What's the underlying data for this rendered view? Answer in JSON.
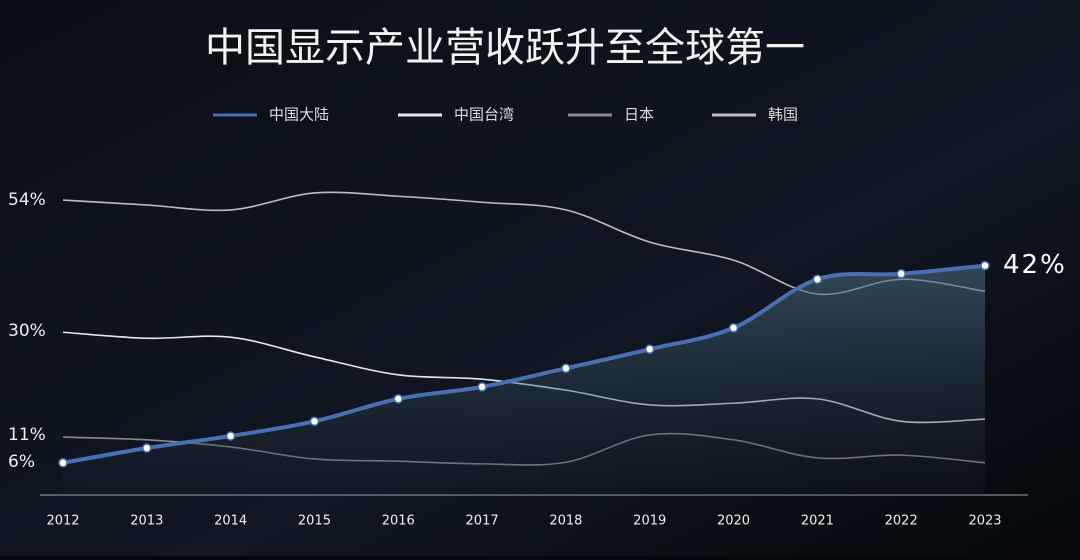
{
  "chart_data": {
    "type": "line",
    "title": "中国显示产业营收跃升至全球第一",
    "categories": [
      "2012",
      "2013",
      "2014",
      "2015",
      "2016",
      "2017",
      "2018",
      "2019",
      "2020",
      "2021",
      "2022",
      "2023"
    ],
    "series": [
      {
        "name": "中国大陆",
        "color": "#4a6fb5",
        "values": [
          5.9,
          8.6,
          10.8,
          13.5,
          17.6,
          19.8,
          23.2,
          26.7,
          30.6,
          39.5,
          40.5,
          42
        ],
        "value_labels": [
          null,
          null,
          null,
          null,
          null,
          null,
          null,
          null,
          null,
          null,
          null,
          "42%"
        ]
      },
      {
        "name": "中国台湾",
        "color": "#e6e6e6",
        "values": [
          29.8,
          28.7,
          28.9,
          25.3,
          22,
          21.2,
          19.2,
          16.5,
          16.8,
          17.6,
          13.5,
          13.9
        ]
      },
      {
        "name": "日本",
        "color": "#8a8a8a",
        "values": [
          10.6,
          10.1,
          8.8,
          6.6,
          6.2,
          5.7,
          6,
          11,
          10.1,
          6.8,
          7.3,
          5.9
        ]
      },
      {
        "name": "韩国",
        "color": "#bdbdbd",
        "values": [
          54,
          53.1,
          52.2,
          55.3,
          54.7,
          53.6,
          52.2,
          46.3,
          43,
          36.8,
          39.5,
          37.3
        ]
      }
    ],
    "ylim": [
      0,
      65
    ],
    "yticks": [
      {
        "value": 54,
        "label": "54%"
      },
      {
        "value": 30,
        "label": "30%"
      },
      {
        "value": 11,
        "label": "11%"
      },
      {
        "value": 6,
        "label": "6%"
      }
    ]
  }
}
